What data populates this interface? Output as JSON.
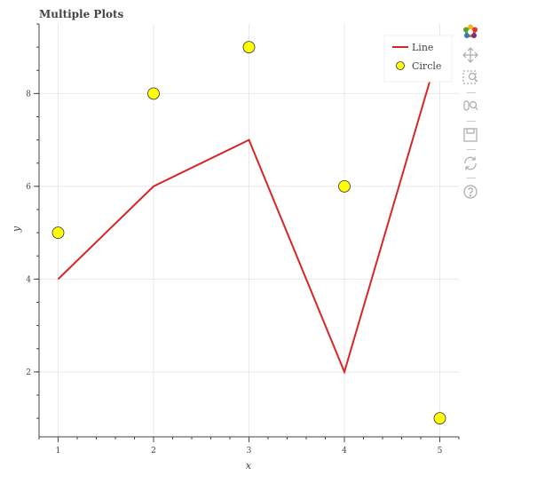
{
  "chart_data": {
    "type": "line",
    "title": "Multiple Plots",
    "xlabel": "x",
    "ylabel": "y",
    "xlim": [
      0.8,
      5.2
    ],
    "ylim": [
      0.6,
      9.5
    ],
    "xticks": [
      1,
      2,
      3,
      4,
      5
    ],
    "yticks": [
      2,
      4,
      6,
      8
    ],
    "grid": true,
    "legend_position": "top-right",
    "series": [
      {
        "name": "Line",
        "kind": "line",
        "color": "#d62728",
        "x": [
          1,
          2,
          3,
          4,
          5
        ],
        "y": [
          4,
          6,
          7,
          2,
          9
        ]
      },
      {
        "name": "Circle",
        "kind": "scatter",
        "color": "#ffff00",
        "x": [
          1,
          2,
          3,
          4,
          5
        ],
        "y": [
          5,
          8,
          9,
          6,
          1
        ]
      }
    ]
  },
  "toolbar": {
    "icons": [
      "bokeh-logo-icon",
      "pan-icon",
      "box-zoom-icon",
      "wheel-zoom-icon",
      "save-icon",
      "reset-icon",
      "help-icon"
    ]
  }
}
